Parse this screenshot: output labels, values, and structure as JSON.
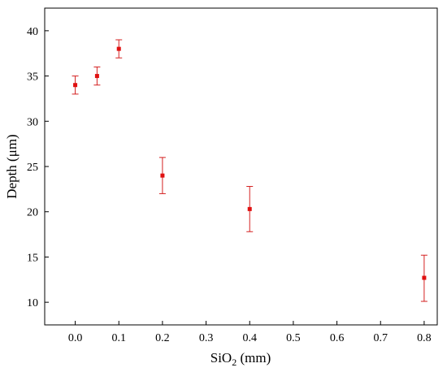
{
  "chart_data": {
    "type": "scatter",
    "xlabel": "SiO",
    "xlabel_subscript": "2",
    "xlabel_unit": " (mm)",
    "ylabel": "Depth (μm)",
    "xlim": [
      -0.07,
      0.83
    ],
    "ylim": [
      7.5,
      42.5
    ],
    "xticks": [
      0.0,
      0.1,
      0.2,
      0.3,
      0.4,
      0.5,
      0.6,
      0.7,
      0.8
    ],
    "xtick_labels": [
      "0.0",
      "0.1",
      "0.2",
      "0.3",
      "0.4",
      "0.5",
      "0.6",
      "0.7",
      "0.8"
    ],
    "yticks": [
      10,
      15,
      20,
      25,
      30,
      35,
      40
    ],
    "ytick_labels": [
      "10",
      "15",
      "20",
      "25",
      "30",
      "35",
      "40"
    ],
    "grid": false,
    "marker_color": "#e01010",
    "errorbar_color": "#d42020",
    "series": [
      {
        "points": [
          {
            "x": 0.0,
            "y": 34.0,
            "err_low": 33.0,
            "err_high": 35.0
          },
          {
            "x": 0.05,
            "y": 35.0,
            "err_low": 34.0,
            "err_high": 36.0
          },
          {
            "x": 0.1,
            "y": 38.0,
            "err_low": 37.0,
            "err_high": 39.0
          },
          {
            "x": 0.2,
            "y": 24.0,
            "err_low": 22.0,
            "err_high": 26.0
          },
          {
            "x": 0.4,
            "y": 20.3,
            "err_low": 17.8,
            "err_high": 22.8
          },
          {
            "x": 0.8,
            "y": 12.7,
            "err_low": 10.1,
            "err_high": 15.2
          }
        ]
      }
    ]
  }
}
